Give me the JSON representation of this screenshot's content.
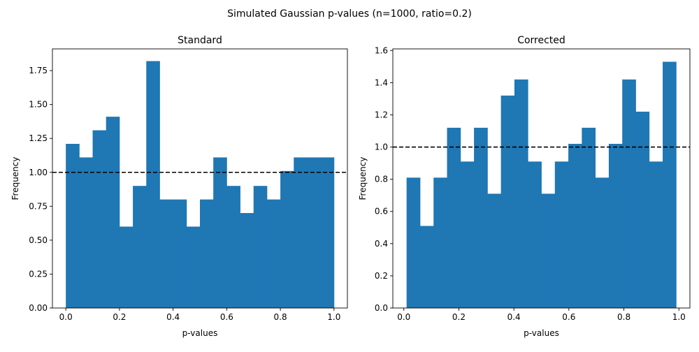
{
  "figure": {
    "suptitle": "Simulated Gaussian p-values (n=1000, ratio=0.2)"
  },
  "colors": {
    "bar": "#1f77b4",
    "reference_line": "#000000"
  },
  "chart_data": [
    {
      "type": "bar",
      "title": "Standard",
      "xlabel": "p-values",
      "ylabel": "Frequency",
      "xlim": [
        -0.05,
        1.05
      ],
      "ylim": [
        0,
        1.91
      ],
      "xticks": [
        0.0,
        0.2,
        0.4,
        0.6,
        0.8,
        1.0
      ],
      "xtick_labels": [
        "0.0",
        "0.2",
        "0.4",
        "0.6",
        "0.8",
        "1.0"
      ],
      "yticks": [
        0.0,
        0.25,
        0.5,
        0.75,
        1.0,
        1.25,
        1.5,
        1.75
      ],
      "ytick_labels": [
        "0.00",
        "0.25",
        "0.50",
        "0.75",
        "1.00",
        "1.25",
        "1.50",
        "1.75"
      ],
      "bin_start": 0.0,
      "bin_width": 0.05,
      "values": [
        1.21,
        1.11,
        1.31,
        1.41,
        0.6,
        0.9,
        1.82,
        0.8,
        0.8,
        0.6,
        0.8,
        1.11,
        0.9,
        0.7,
        0.9,
        0.8,
        1.01,
        1.11,
        1.11,
        1.11
      ],
      "reference_line": 1.0,
      "grid": false
    },
    {
      "type": "bar",
      "title": "Corrected",
      "xlabel": "p-values",
      "ylabel": "Frequency",
      "xlim": [
        -0.04,
        1.04
      ],
      "ylim": [
        0,
        1.61
      ],
      "xticks": [
        0.0,
        0.2,
        0.4,
        0.6,
        0.8,
        1.0
      ],
      "xtick_labels": [
        "0.0",
        "0.2",
        "0.4",
        "0.6",
        "0.8",
        "1.0"
      ],
      "yticks": [
        0.0,
        0.2,
        0.4,
        0.6,
        0.8,
        1.0,
        1.2,
        1.4,
        1.6
      ],
      "ytick_labels": [
        "0.0",
        "0.2",
        "0.4",
        "0.6",
        "0.8",
        "1.0",
        "1.2",
        "1.4",
        "1.6"
      ],
      "bin_start": 0.01,
      "bin_width": 0.049,
      "values": [
        0.81,
        0.51,
        0.81,
        1.12,
        0.91,
        1.12,
        0.71,
        1.32,
        1.42,
        0.91,
        0.71,
        0.91,
        1.02,
        1.12,
        0.81,
        1.02,
        1.42,
        1.22,
        0.91,
        1.53
      ],
      "reference_line": 1.0,
      "grid": false
    }
  ]
}
